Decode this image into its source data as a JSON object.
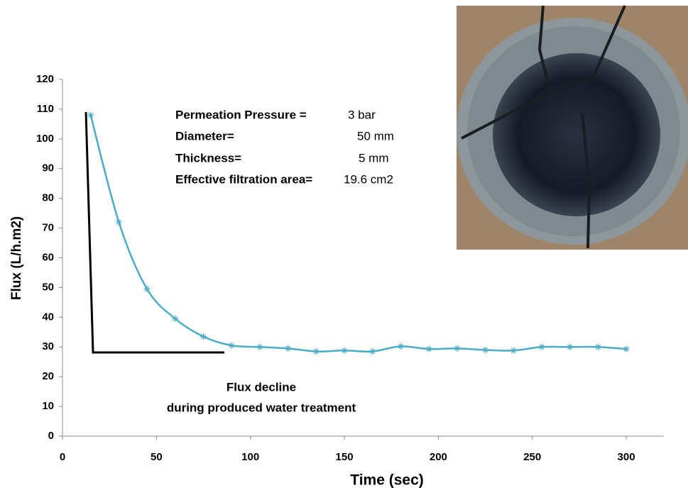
{
  "chart_data": {
    "type": "line",
    "x_label": "Time (sec)",
    "y_label": "Flux (L/h.m2)",
    "x": [
      15,
      30,
      45,
      60,
      75,
      90,
      105,
      120,
      135,
      150,
      165,
      180,
      195,
      210,
      225,
      240,
      255,
      270,
      285,
      300
    ],
    "values": [
      108,
      72,
      49.5,
      39.5,
      33.5,
      30.5,
      30,
      29.5,
      28.5,
      28.8,
      28.5,
      30.2,
      29.3,
      29.5,
      29,
      28.8,
      30,
      30,
      30,
      29.3
    ],
    "color": "#4bacc6",
    "xlim": [
      0,
      320
    ],
    "xticks": [
      0,
      50,
      100,
      150,
      200,
      250,
      300
    ],
    "ylim": [
      0,
      120
    ],
    "yticks": [
      0,
      10,
      20,
      30,
      40,
      50,
      60,
      70,
      80,
      90,
      100,
      110,
      120
    ],
    "grid": false,
    "annotations": [
      {
        "label": "Permeation Pressure =",
        "value": "3 bar"
      },
      {
        "label": "Diameter=",
        "value": "50 mm"
      },
      {
        "label": "Thickness=",
        "value": "5 mm"
      },
      {
        "label": "Effective filtration area=",
        "value": "19.6 cm2"
      }
    ],
    "note": [
      "Flux decline",
      "during  produced water treatment"
    ]
  }
}
